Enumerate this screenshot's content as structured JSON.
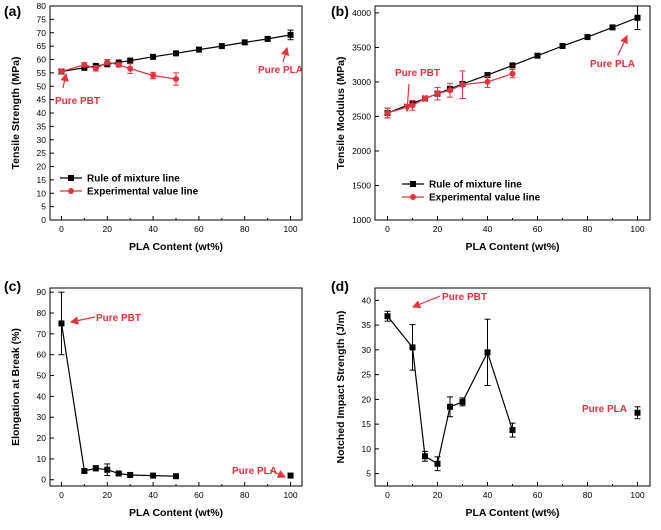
{
  "chart_data": [
    {
      "panel": "(a)",
      "type": "line",
      "xlabel": "PLA Content (wt%)",
      "ylabel": "Tensile Strength (MPa)",
      "xlim": [
        -5,
        105
      ],
      "ylim": [
        0,
        80
      ],
      "xticks": [
        0,
        20,
        40,
        60,
        80,
        100
      ],
      "yticks": [
        0,
        5,
        10,
        15,
        20,
        25,
        30,
        35,
        40,
        45,
        50,
        55,
        60,
        65,
        70,
        75,
        80
      ],
      "legend_position": "bottom-left",
      "series": [
        {
          "name": "Rule of mixture line",
          "color": "#000000",
          "marker": "square",
          "x": [
            0,
            10,
            15,
            20,
            25,
            30,
            40,
            50,
            60,
            70,
            80,
            90,
            100
          ],
          "y": [
            55.5,
            56.9,
            57.6,
            58.2,
            58.9,
            59.6,
            61.0,
            62.3,
            63.7,
            65.0,
            66.4,
            67.7,
            69.2
          ],
          "err": [
            0,
            0,
            0,
            0,
            0,
            0,
            0,
            0,
            0,
            0,
            0,
            0,
            1.8
          ]
        },
        {
          "name": "Experimental value line",
          "color": "#e8323c",
          "marker": "circle",
          "x": [
            0,
            10,
            15,
            20,
            25,
            30,
            40,
            50
          ],
          "y": [
            55.5,
            58.0,
            56.7,
            59.0,
            58.0,
            56.6,
            54.0,
            52.7
          ],
          "err": [
            0,
            0.8,
            1.0,
            1.0,
            0.8,
            1.8,
            1.2,
            2.3
          ]
        }
      ],
      "annotations": [
        {
          "text": "Pure PBT",
          "x": 0,
          "y": 55.5
        },
        {
          "text": "Pure PLA",
          "x": 100,
          "y": 69.2
        }
      ]
    },
    {
      "panel": "(b)",
      "type": "line",
      "xlabel": "PLA Content (wt%)",
      "ylabel": "Tensile Modulus (MPa)",
      "xlim": [
        -5,
        105
      ],
      "ylim": [
        1000,
        4100
      ],
      "xticks": [
        0,
        20,
        40,
        60,
        80,
        100
      ],
      "yticks": [
        1000,
        1500,
        2000,
        2500,
        3000,
        3500,
        4000
      ],
      "legend_position": "bottom-left",
      "series": [
        {
          "name": "Rule of mixture line",
          "color": "#000000",
          "marker": "square",
          "x": [
            0,
            10,
            15,
            20,
            25,
            30,
            40,
            50,
            60,
            70,
            80,
            90,
            100
          ],
          "y": [
            2550,
            2690,
            2760,
            2830,
            2900,
            2970,
            3100,
            3240,
            3380,
            3520,
            3650,
            3790,
            3930
          ],
          "err": [
            70,
            0,
            0,
            0,
            0,
            0,
            0,
            0,
            0,
            0,
            0,
            0,
            170
          ]
        },
        {
          "name": "Experimental value line",
          "color": "#e8323c",
          "marker": "circle",
          "x": [
            0,
            10,
            15,
            20,
            25,
            30,
            40,
            50
          ],
          "y": [
            2550,
            2660,
            2760,
            2830,
            2880,
            2960,
            3000,
            3120
          ],
          "err": [
            70,
            70,
            30,
            90,
            100,
            200,
            80,
            60
          ]
        }
      ],
      "annotations": [
        {
          "text": "Pure PBT",
          "x": 0,
          "y": 2550
        },
        {
          "text": "Pure PLA",
          "x": 100,
          "y": 3930
        }
      ]
    },
    {
      "panel": "(c)",
      "type": "scatter",
      "xlabel": "PLA Content (wt%)",
      "ylabel": "Elongation at Break (%)",
      "xlim": [
        -5,
        105
      ],
      "ylim": [
        -3,
        92
      ],
      "xticks": [
        0,
        20,
        40,
        60,
        80,
        100
      ],
      "yticks": [
        0,
        10,
        20,
        30,
        40,
        50,
        60,
        70,
        80,
        90
      ],
      "series": [
        {
          "name": "Elongation at Break",
          "color": "#000000",
          "marker": "square",
          "x": [
            0,
            10,
            15,
            20,
            25,
            30,
            40,
            50,
            100
          ],
          "y": [
            75,
            4.2,
            5.5,
            4.8,
            3.0,
            2.3,
            2.0,
            1.7,
            2.0
          ],
          "err": [
            15,
            0.8,
            1.2,
            2.8,
            0.6,
            0.4,
            0.3,
            0.3,
            0.3
          ],
          "connect": [
            0,
            1,
            2,
            3,
            4,
            5,
            6,
            7
          ]
        }
      ],
      "annotations": [
        {
          "text": "Pure PBT",
          "x": 0,
          "y": 75
        },
        {
          "text": "Pure PLA",
          "x": 100,
          "y": 2
        }
      ]
    },
    {
      "panel": "(d)",
      "type": "scatter",
      "xlabel": "PLA Content (wt%)",
      "ylabel": "Notched Impact Strength (J/m)",
      "xlim": [
        -5,
        105
      ],
      "ylim": [
        2.5,
        42.5
      ],
      "xticks": [
        0,
        20,
        40,
        60,
        80,
        100
      ],
      "yticks": [
        5,
        10,
        15,
        20,
        25,
        30,
        35,
        40
      ],
      "series": [
        {
          "name": "Notched Impact Strength",
          "color": "#000000",
          "marker": "square",
          "x": [
            0,
            10,
            15,
            20,
            25,
            30,
            40,
            50,
            100
          ],
          "y": [
            36.8,
            30.5,
            8.5,
            7.0,
            18.5,
            19.5,
            29.5,
            13.8,
            17.3
          ],
          "err": [
            1.0,
            4.6,
            1.0,
            1.4,
            2.0,
            0.8,
            6.7,
            1.4,
            1.2
          ],
          "connect": [
            0,
            1,
            2,
            3,
            4,
            5,
            6,
            7
          ]
        }
      ],
      "annotations": [
        {
          "text": "Pure PBT",
          "x": 0,
          "y": 36.8
        },
        {
          "text": "Pure PLA",
          "x": 100,
          "y": 17.3
        }
      ]
    }
  ]
}
